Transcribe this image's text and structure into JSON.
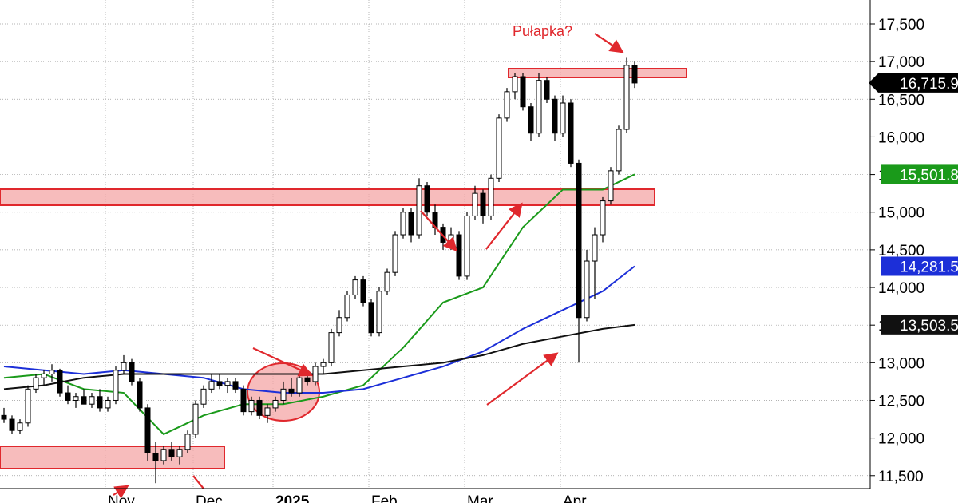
{
  "chart_data": {
    "type": "candlestick",
    "annotation": "Pułapka?",
    "categories": [
      null,
      null,
      null,
      null,
      null,
      null,
      null,
      null,
      null,
      null,
      null,
      null,
      null,
      "Nov",
      null,
      null,
      null,
      null,
      null,
      null,
      null,
      null,
      null,
      null,
      "Dec",
      null,
      null,
      null,
      null,
      null,
      null,
      null,
      null,
      null,
      "2025",
      null,
      null,
      null,
      null,
      null,
      null,
      null,
      null,
      null,
      null,
      null,
      "Feb",
      null,
      null,
      null,
      null,
      null,
      null,
      null,
      null,
      null,
      null,
      null,
      "Mar",
      null,
      null,
      null,
      null,
      null,
      null,
      null,
      null,
      null,
      null,
      null,
      "Apr",
      null,
      null,
      null,
      null,
      null,
      null,
      null,
      null,
      null
    ],
    "ylim": [
      11328,
      17818
    ],
    "yticks": [
      {
        "value": 11500,
        "label": "11,500"
      },
      {
        "value": 12000,
        "label": "12,000"
      },
      {
        "value": 12500,
        "label": "12,500"
      },
      {
        "value": 13000,
        "label": "13,000"
      },
      {
        "value": 13500,
        "label": "13,500"
      },
      {
        "value": 14000,
        "label": "14,000"
      },
      {
        "value": 14500,
        "label": "14,500"
      },
      {
        "value": 15000,
        "label": "15,000"
      },
      {
        "value": 15500,
        "label": "15,500"
      },
      {
        "value": 16000,
        "label": "16,000"
      },
      {
        "value": 16500,
        "label": "16,500"
      },
      {
        "value": 17000,
        "label": "17,000"
      },
      {
        "value": 17500,
        "label": "17,500"
      }
    ],
    "grid": true,
    "series": [
      {
        "color": "#000000",
        "last_label": "16,715.9",
        "values": [
          [
            12300,
            12400,
            12200,
            12250
          ],
          [
            12250,
            12300,
            12050,
            12100
          ],
          [
            12100,
            12250,
            12050,
            12200
          ],
          [
            12200,
            12700,
            12150,
            12650
          ],
          [
            12650,
            12850,
            12600,
            12800
          ],
          [
            12800,
            12900,
            12700,
            12850
          ],
          [
            12850,
            12980,
            12750,
            12900
          ],
          [
            12900,
            12920,
            12550,
            12600
          ],
          [
            12600,
            12700,
            12450,
            12500
          ],
          [
            12500,
            12600,
            12400,
            12550
          ],
          [
            12550,
            12650,
            12450,
            12450
          ],
          [
            12450,
            12600,
            12400,
            12550
          ],
          [
            12550,
            12650,
            12350,
            12400
          ],
          [
            12400,
            12550,
            12350,
            12500
          ],
          [
            12500,
            12950,
            12450,
            12900
          ],
          [
            12900,
            13100,
            12850,
            13000
          ],
          [
            13000,
            13050,
            12700,
            12750
          ],
          [
            12750,
            12800,
            12350,
            12400
          ],
          [
            12400,
            12450,
            11700,
            11800
          ],
          [
            11800,
            11950,
            11400,
            11700
          ],
          [
            11700,
            11900,
            11650,
            11850
          ],
          [
            11850,
            11950,
            11700,
            11750
          ],
          [
            11750,
            11900,
            11650,
            11850
          ],
          [
            11850,
            12100,
            11800,
            12050
          ],
          [
            12050,
            12500,
            12000,
            12450
          ],
          [
            12450,
            12700,
            12400,
            12650
          ],
          [
            12650,
            12850,
            12600,
            12750
          ],
          [
            12750,
            12850,
            12650,
            12700
          ],
          [
            12700,
            12800,
            12600,
            12750
          ],
          [
            12750,
            12800,
            12600,
            12650
          ],
          [
            12650,
            12700,
            12300,
            12350
          ],
          [
            12350,
            12550,
            12300,
            12500
          ],
          [
            12500,
            12550,
            12250,
            12300
          ],
          [
            12300,
            12450,
            12200,
            12400
          ],
          [
            12400,
            12550,
            12350,
            12500
          ],
          [
            12500,
            12750,
            12450,
            12650
          ],
          [
            12650,
            12800,
            12550,
            12600
          ],
          [
            12600,
            12850,
            12550,
            12800
          ],
          [
            12800,
            12900,
            12700,
            12750
          ],
          [
            12750,
            13000,
            12700,
            12950
          ],
          [
            12950,
            13050,
            12850,
            13000
          ],
          [
            13000,
            13450,
            12950,
            13400
          ],
          [
            13400,
            13700,
            13350,
            13600
          ],
          [
            13600,
            13950,
            13550,
            13900
          ],
          [
            13900,
            14150,
            13850,
            14100
          ],
          [
            14100,
            14150,
            13750,
            13800
          ],
          [
            13800,
            13850,
            13350,
            13400
          ],
          [
            13400,
            14000,
            13350,
            13950
          ],
          [
            13950,
            14250,
            13900,
            14200
          ],
          [
            14200,
            14750,
            14150,
            14700
          ],
          [
            14700,
            15050,
            14650,
            15000
          ],
          [
            15000,
            15050,
            14600,
            14700
          ],
          [
            14700,
            15450,
            14650,
            15350
          ],
          [
            15350,
            15400,
            14950,
            15000
          ],
          [
            15000,
            15100,
            14700,
            14800
          ],
          [
            14800,
            14850,
            14500,
            14600
          ],
          [
            14600,
            14800,
            14500,
            14700
          ],
          [
            14700,
            14750,
            14100,
            14150
          ],
          [
            14150,
            15000,
            14100,
            14950
          ],
          [
            14950,
            15350,
            14900,
            15250
          ],
          [
            15250,
            15300,
            14850,
            14950
          ],
          [
            14950,
            15500,
            14900,
            15450
          ],
          [
            15450,
            16300,
            15400,
            16250
          ],
          [
            16250,
            16650,
            16200,
            16600
          ],
          [
            16600,
            16850,
            16500,
            16800
          ],
          [
            16800,
            16850,
            16350,
            16400
          ],
          [
            16400,
            16450,
            15950,
            16050
          ],
          [
            16050,
            16850,
            16000,
            16750
          ],
          [
            16750,
            16800,
            16450,
            16500
          ],
          [
            16500,
            16550,
            15950,
            16050
          ],
          [
            16050,
            16550,
            16000,
            16450
          ],
          [
            16450,
            16500,
            15600,
            15650
          ],
          [
            15650,
            15700,
            13000,
            13600
          ],
          [
            13600,
            14500,
            13550,
            14350
          ],
          [
            14350,
            14800,
            13850,
            14700
          ],
          [
            14700,
            15200,
            14600,
            15150
          ],
          [
            15150,
            15600,
            15100,
            15550
          ],
          [
            15550,
            16150,
            15500,
            16100
          ],
          [
            16100,
            17050,
            16050,
            16950
          ],
          [
            16950,
            17000,
            16650,
            16715.9
          ]
        ]
      },
      {
        "type": "line",
        "color": "#1a9a1a",
        "last_label": "15,501.8",
        "x": [
          0,
          5,
          10,
          15,
          20,
          25,
          30,
          35,
          40,
          45,
          50,
          55,
          60,
          65,
          70,
          75,
          79
        ],
        "values": [
          12800,
          12850,
          12650,
          12600,
          12050,
          12300,
          12450,
          12450,
          12550,
          12700,
          13200,
          13800,
          14000,
          14800,
          15300,
          15300,
          15501.8
        ]
      },
      {
        "type": "line",
        "color": "#1c2fd8",
        "last_label": "14,281.5",
        "x": [
          0,
          5,
          10,
          15,
          20,
          25,
          30,
          35,
          40,
          45,
          50,
          55,
          60,
          65,
          70,
          75,
          79
        ],
        "values": [
          12950,
          12900,
          12850,
          12900,
          12850,
          12800,
          12650,
          12600,
          12600,
          12650,
          12800,
          12950,
          13150,
          13450,
          13700,
          13950,
          14281.5
        ]
      },
      {
        "type": "line",
        "color": "#111111",
        "last_label": "13,503.5",
        "x": [
          0,
          5,
          10,
          15,
          20,
          25,
          30,
          35,
          40,
          45,
          50,
          55,
          60,
          65,
          70,
          75,
          79
        ],
        "values": [
          12650,
          12700,
          12800,
          12850,
          12850,
          12850,
          12850,
          12850,
          12850,
          12900,
          12950,
          13000,
          13100,
          13250,
          13350,
          13450,
          13503.5
        ]
      }
    ]
  }
}
